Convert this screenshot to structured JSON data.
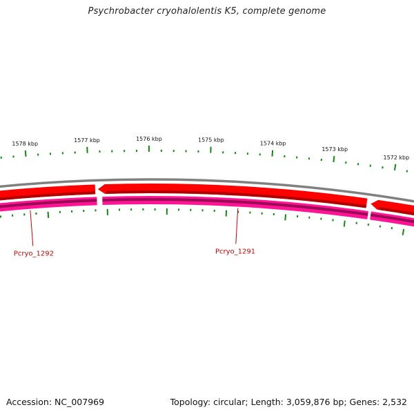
{
  "title": "Psychrobacter cryohalolentis K5, complete genome",
  "footer": {
    "accession": "Accession: NC_007969",
    "summary": "Topology: circular; Length: 3,059,876 bp; Genes: 2,532"
  },
  "colors": {
    "backbone": "#808080",
    "forward_gene": "#ff0000",
    "forward_gene_dark": "#b00000",
    "reverse_gene": "#ff1493",
    "reverse_gene_dark": "#9b0a57",
    "tick": "#118811",
    "label": "#cc0000"
  },
  "scale": {
    "unit": "kbp",
    "ticks": [
      {
        "kbp": 1578,
        "label": "1578 kbp"
      },
      {
        "kbp": 1577,
        "label": "1577 kbp"
      },
      {
        "kbp": 1576,
        "label": "1576 kbp"
      },
      {
        "kbp": 1575,
        "label": "1575 kbp"
      },
      {
        "kbp": 1574,
        "label": "1574 kbp"
      },
      {
        "kbp": 1573,
        "label": "1573 kbp"
      },
      {
        "kbp": 1572,
        "label": "1572 kbp"
      }
    ]
  },
  "genes": [
    {
      "name": "Pcryo_1292",
      "strand": "reverse",
      "label": "Pcryo_1292"
    },
    {
      "name": "Pcryo_1291",
      "strand": "reverse",
      "label": "Pcryo_1291"
    }
  ]
}
